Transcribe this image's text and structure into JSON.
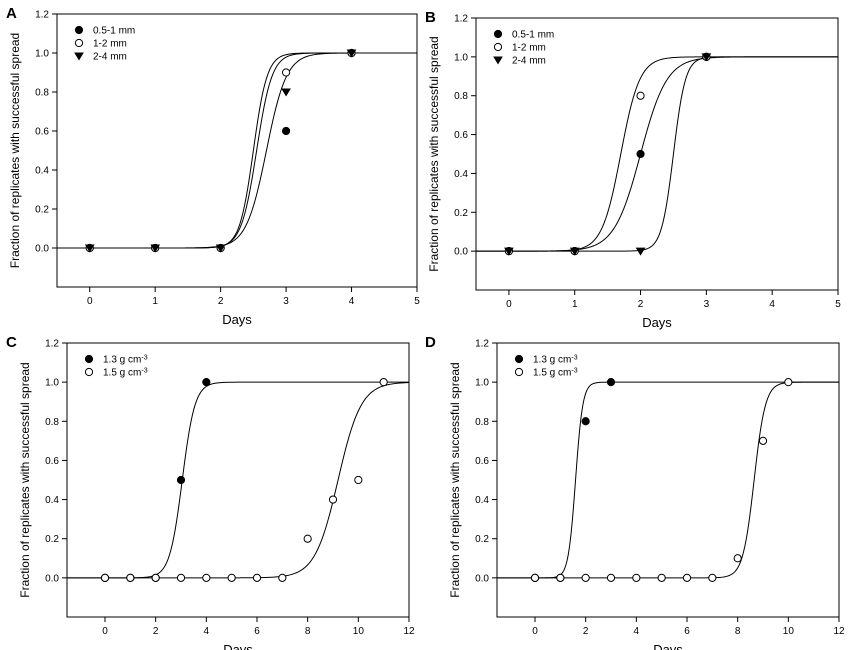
{
  "chart_data": [
    {
      "panel": "A",
      "type": "scatter",
      "xlabel": "Days",
      "ylabel": "Fraction of replicates with successful spread",
      "xlim": [
        -0.5,
        5
      ],
      "ylim": [
        -0.2,
        1.2
      ],
      "xticks": [
        "0",
        "1",
        "2",
        "3",
        "4",
        "5"
      ],
      "yticks": [
        "0.0",
        "0.2",
        "0.4",
        "0.6",
        "0.8",
        "1.0",
        "1.2"
      ],
      "legend_position": "top-left",
      "series": [
        {
          "name": "0.5-1 mm",
          "marker": "filled-circle",
          "x": [
            0,
            1,
            2,
            3,
            4
          ],
          "y": [
            0,
            0,
            0,
            0.6,
            1.0
          ],
          "fit_midpoint": 2.7,
          "fit_slope": 6.5
        },
        {
          "name": "1-2 mm",
          "marker": "open-circle",
          "x": [
            0,
            1,
            2,
            3,
            4
          ],
          "y": [
            0,
            0,
            0,
            0.9,
            1.0
          ],
          "fit_midpoint": 2.5,
          "fit_slope": 9.5
        },
        {
          "name": "2-4 mm",
          "marker": "filled-triangle",
          "x": [
            0,
            1,
            2,
            3,
            4
          ],
          "y": [
            0,
            0,
            0,
            0.8,
            1.0
          ],
          "fit_midpoint": 2.55,
          "fit_slope": 8.5
        }
      ]
    },
    {
      "panel": "B",
      "type": "scatter",
      "xlabel": "Days",
      "ylabel": "Fraction of replicates with successful spread",
      "xlim": [
        -0.5,
        5
      ],
      "ylim": [
        -0.2,
        1.2
      ],
      "xticks": [
        "0",
        "1",
        "2",
        "3",
        "4",
        "5"
      ],
      "yticks": [
        "0.0",
        "0.2",
        "0.4",
        "0.6",
        "0.8",
        "1.0",
        "1.2"
      ],
      "legend_position": "top-left",
      "series": [
        {
          "name": "0.5-1 mm",
          "marker": "filled-circle",
          "x": [
            0,
            1,
            2,
            3
          ],
          "y": [
            0,
            0,
            0.5,
            1.0
          ],
          "fit_midpoint": 2.0,
          "fit_slope": 5.0
        },
        {
          "name": "1-2 mm",
          "marker": "open-circle",
          "x": [
            0,
            1,
            2,
            3
          ],
          "y": [
            0,
            0,
            0.8,
            1.0
          ],
          "fit_midpoint": 1.7,
          "fit_slope": 7.0
        },
        {
          "name": "2-4 mm",
          "marker": "filled-triangle",
          "x": [
            0,
            1,
            2,
            3
          ],
          "y": [
            0,
            0,
            0,
            1.0
          ],
          "fit_midpoint": 2.5,
          "fit_slope": 11.0
        }
      ]
    },
    {
      "panel": "C",
      "type": "scatter",
      "xlabel": "Days",
      "ylabel": "Fraction of replicates with successful spread",
      "xlim": [
        -1.5,
        12
      ],
      "ylim": [
        -0.2,
        1.2
      ],
      "xticks": [
        "0",
        "2",
        "4",
        "6",
        "8",
        "10",
        "12"
      ],
      "yticks": [
        "0.0",
        "0.2",
        "0.4",
        "0.6",
        "0.8",
        "1.0",
        "1.2"
      ],
      "legend_position": "top-left",
      "series": [
        {
          "name": "1.3 g cm",
          "unit_exponent": "-3",
          "marker": "filled-circle",
          "x": [
            0,
            1,
            2,
            3,
            4
          ],
          "y": [
            0,
            0,
            0,
            0.5,
            1.0
          ],
          "fit_midpoint": 3.05,
          "fit_slope": 4.0
        },
        {
          "name": "1.5 g cm",
          "unit_exponent": "-3",
          "marker": "open-circle",
          "x": [
            0,
            1,
            2,
            3,
            4,
            5,
            6,
            7,
            8,
            9,
            10,
            11
          ],
          "y": [
            0,
            0,
            0,
            0,
            0,
            0,
            0,
            0,
            0.2,
            0.4,
            0.5,
            1.0
          ],
          "fit_midpoint": 9.2,
          "fit_slope": 2.2
        }
      ]
    },
    {
      "panel": "D",
      "type": "scatter",
      "xlabel": "Days",
      "ylabel": "Fraction of replicates with successful spread",
      "xlim": [
        -1.5,
        12
      ],
      "ylim": [
        -0.2,
        1.2
      ],
      "xticks": [
        "0",
        "2",
        "4",
        "6",
        "8",
        "10",
        "12"
      ],
      "yticks": [
        "0.0",
        "0.2",
        "0.4",
        "0.6",
        "0.8",
        "1.0",
        "1.2"
      ],
      "legend_position": "top-left",
      "series": [
        {
          "name": "1.3 g cm",
          "unit_exponent": "-3",
          "marker": "filled-circle",
          "x": [
            0,
            1,
            2,
            3
          ],
          "y": [
            0,
            0,
            0.8,
            1.0
          ],
          "fit_midpoint": 1.6,
          "fit_slope": 7.0
        },
        {
          "name": "1.5 g cm",
          "unit_exponent": "-3",
          "marker": "open-circle",
          "x": [
            0,
            1,
            2,
            3,
            4,
            5,
            6,
            7,
            8,
            9,
            10
          ],
          "y": [
            0,
            0,
            0,
            0,
            0,
            0,
            0,
            0,
            0.1,
            0.7,
            1.0
          ],
          "fit_midpoint": 8.65,
          "fit_slope": 4.5
        }
      ]
    }
  ]
}
